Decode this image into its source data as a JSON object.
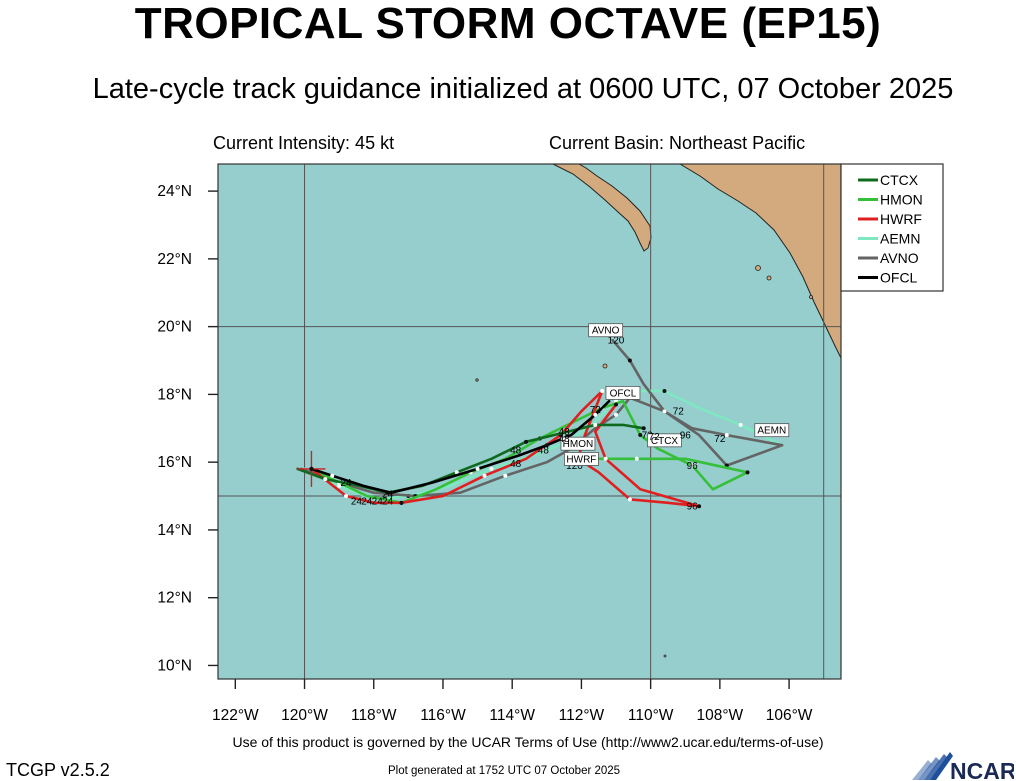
{
  "header": {
    "title": "TROPICAL STORM OCTAVE (EP15)",
    "subtitle": "Late-cycle track guidance initialized at 0600 UTC, 07 October 2025",
    "current_intensity": "Current Intensity: 45 kt",
    "current_basin": "Current Basin: Northeast Pacific"
  },
  "footer": {
    "terms": "Use of this product is governed by the UCAR Terms of Use (http://www2.ucar.edu/terms-of-use)",
    "version": "TCGP v2.5.2",
    "generated": "Plot generated at 1752 UTC   07 October 2025",
    "logo_text": "NCAR"
  },
  "colors": {
    "ocean": "#96cdcd",
    "land": "#d2aa7d",
    "grid": "#555555",
    "current_position_marker": "#d22020"
  },
  "map": {
    "type": "track-map",
    "lon_range_deg_W": [
      122.5,
      104.5
    ],
    "lat_range_deg_N": [
      9.6,
      24.8
    ],
    "lon_ticks_deg_W": [
      122,
      120,
      118,
      116,
      114,
      112,
      110,
      108,
      106
    ],
    "lat_ticks_deg_N": [
      10,
      12,
      14,
      16,
      18,
      20,
      22,
      24
    ],
    "lon_tick_labels": [
      "122°W",
      "120°W",
      "118°W",
      "116°W",
      "114°W",
      "112°W",
      "110°W",
      "108°W",
      "106°W"
    ],
    "lat_tick_labels": [
      "10°N",
      "12°N",
      "14°N",
      "16°N",
      "18°N",
      "20°N",
      "22°N",
      "24°N"
    ],
    "grid_lines": {
      "lon_W": [
        120,
        110,
        105
      ],
      "lat_N": [
        15,
        20
      ]
    },
    "current_position": {
      "lon": 119.8,
      "lat": 15.8
    }
  },
  "legend": {
    "placement": "top-right",
    "entries": [
      {
        "name": "CTCX",
        "color": "#0f6a1e"
      },
      {
        "name": "HMON",
        "color": "#36c03a"
      },
      {
        "name": "HWRF",
        "color": "#e02020"
      },
      {
        "name": "AEMN",
        "color": "#7ee8c0"
      },
      {
        "name": "AVNO",
        "color": "#646464"
      },
      {
        "name": "OFCL",
        "color": "#000000"
      }
    ]
  },
  "chart_data": {
    "type": "track-map",
    "x_unit": "degrees W longitude",
    "y_unit": "degrees N latitude",
    "series": [
      {
        "name": "AEMN",
        "color": "#7ee8c0",
        "points": [
          [
            120.0,
            15.8
          ],
          [
            119.0,
            15.3
          ],
          [
            118.0,
            14.9
          ],
          [
            117.0,
            15.0
          ],
          [
            115.8,
            15.3
          ],
          [
            114.6,
            15.8
          ],
          [
            113.4,
            16.2
          ],
          [
            112.4,
            16.6
          ],
          [
            111.7,
            17.1
          ],
          [
            111.0,
            17.8
          ],
          [
            110.4,
            18.1
          ],
          [
            109.6,
            18.1
          ],
          [
            108.6,
            17.6
          ],
          [
            107.4,
            17.1
          ],
          [
            106.2,
            16.5
          ]
        ],
        "labels": [
          {
            "text": "72",
            "lon": 109.2,
            "lat": 17.4
          }
        ],
        "box_label": {
          "text": "AEMN",
          "lon": 106.5,
          "lat": 16.9
        }
      },
      {
        "name": "AVNO",
        "color": "#646464",
        "points": [
          [
            120.1,
            15.8
          ],
          [
            119.0,
            15.4
          ],
          [
            118.0,
            15.1
          ],
          [
            116.8,
            15.0
          ],
          [
            115.5,
            15.1
          ],
          [
            114.2,
            15.6
          ],
          [
            113.0,
            16.0
          ],
          [
            112.3,
            16.4
          ],
          [
            111.6,
            17.0
          ],
          [
            111.0,
            17.4
          ],
          [
            110.6,
            17.9
          ],
          [
            109.6,
            17.5
          ],
          [
            108.8,
            17.0
          ],
          [
            107.8,
            16.8
          ],
          [
            106.2,
            16.5
          ],
          [
            107.8,
            15.9
          ],
          [
            108.6,
            16.8
          ],
          [
            109.6,
            17.5
          ],
          [
            110.2,
            18.3
          ],
          [
            110.6,
            19.0
          ],
          [
            111.1,
            19.6
          ]
        ],
        "labels": [
          {
            "text": "72",
            "lon": 108.0,
            "lat": 16.6
          },
          {
            "text": "120",
            "lon": 111.0,
            "lat": 19.5
          }
        ],
        "box_label": {
          "text": "AVNO",
          "lon": 111.3,
          "lat": 19.85
        }
      },
      {
        "name": "HMON",
        "color": "#36c03a",
        "points": [
          [
            119.8,
            15.8
          ],
          [
            119.0,
            15.4
          ],
          [
            118.2,
            15.0
          ],
          [
            117.2,
            14.8
          ],
          [
            116.2,
            15.2
          ],
          [
            115.2,
            15.7
          ],
          [
            114.2,
            16.1
          ],
          [
            113.2,
            16.7
          ],
          [
            112.2,
            17.2
          ],
          [
            111.4,
            17.6
          ],
          [
            110.8,
            17.8
          ],
          [
            110.3,
            16.8
          ],
          [
            109.8,
            16.4
          ],
          [
            108.8,
            15.9
          ],
          [
            108.2,
            15.2
          ],
          [
            107.2,
            15.7
          ],
          [
            109.0,
            16.1
          ],
          [
            110.4,
            16.1
          ],
          [
            111.8,
            16.1
          ]
        ],
        "labels": [
          {
            "text": "96",
            "lon": 108.8,
            "lat": 15.8
          }
        ],
        "box_label": {
          "text": "HMON",
          "lon": 112.1,
          "lat": 16.5
        }
      },
      {
        "name": "HWRF",
        "color": "#e02020",
        "points": [
          [
            119.8,
            15.8
          ],
          [
            118.8,
            15.0
          ],
          [
            118.0,
            14.8
          ],
          [
            117.2,
            14.8
          ],
          [
            116.0,
            15.0
          ],
          [
            114.8,
            15.6
          ],
          [
            113.6,
            16.1
          ],
          [
            112.6,
            16.8
          ],
          [
            112.0,
            17.5
          ],
          [
            111.4,
            18.1
          ],
          [
            111.9,
            16.8
          ],
          [
            112.1,
            16.1
          ],
          [
            111.5,
            15.7
          ],
          [
            110.6,
            14.9
          ],
          [
            109.5,
            14.8
          ],
          [
            108.6,
            14.7
          ],
          [
            110.3,
            15.2
          ],
          [
            111.3,
            16.1
          ],
          [
            111.6,
            16.9
          ],
          [
            111.0,
            17.7
          ]
        ],
        "labels": [
          {
            "text": "96",
            "lon": 108.8,
            "lat": 14.6
          },
          {
            "text": "120",
            "lon": 112.2,
            "lat": 15.8
          }
        ],
        "box_label": {
          "text": "HWRF",
          "lon": 112.0,
          "lat": 16.05
        }
      },
      {
        "name": "CTCX",
        "color": "#0f6a1e",
        "points": [
          [
            120.2,
            15.8
          ],
          [
            119.4,
            15.5
          ],
          [
            118.4,
            15.3
          ],
          [
            117.6,
            15.1
          ],
          [
            116.6,
            15.3
          ],
          [
            115.6,
            15.7
          ],
          [
            114.6,
            16.1
          ],
          [
            113.6,
            16.6
          ],
          [
            112.8,
            16.8
          ],
          [
            111.6,
            17.1
          ],
          [
            110.8,
            17.1
          ],
          [
            110.2,
            17.0
          ]
        ],
        "labels": [
          {
            "text": "72",
            "lon": 110.1,
            "lat": 16.7
          }
        ],
        "box_label": {
          "text": "CTCX",
          "lon": 109.6,
          "lat": 16.6
        }
      },
      {
        "name": "OFCL",
        "color": "#000000",
        "points": [
          [
            119.8,
            15.8
          ],
          [
            119.2,
            15.6
          ],
          [
            118.3,
            15.3
          ],
          [
            117.5,
            15.1
          ],
          [
            116.3,
            15.4
          ],
          [
            115.0,
            15.8
          ],
          [
            113.8,
            16.2
          ],
          [
            113.0,
            16.5
          ],
          [
            112.3,
            16.8
          ],
          [
            111.6,
            17.4
          ],
          [
            111.2,
            17.8
          ]
        ],
        "labels": [
          {
            "text": "72",
            "lon": 111.6,
            "lat": 17.45
          }
        ],
        "box_label": {
          "text": "OFCL",
          "lon": 110.8,
          "lat": 18.0
        }
      }
    ],
    "forecast_hour_labels": [
      {
        "text": "24",
        "lon": 118.8,
        "lat": 15.3
      },
      {
        "text": "24",
        "lon": 117.6,
        "lat": 14.95
      },
      {
        "text": "24",
        "lon": 118.5,
        "lat": 14.75
      },
      {
        "text": "24",
        "lon": 118.2,
        "lat": 14.75
      },
      {
        "text": "24",
        "lon": 117.9,
        "lat": 14.75
      },
      {
        "text": "24",
        "lon": 117.6,
        "lat": 14.75
      },
      {
        "text": "48",
        "lon": 113.9,
        "lat": 16.25
      },
      {
        "text": "48",
        "lon": 113.9,
        "lat": 15.85
      },
      {
        "text": "48",
        "lon": 113.1,
        "lat": 16.25
      },
      {
        "text": "48",
        "lon": 112.5,
        "lat": 16.8
      },
      {
        "text": "48",
        "lon": 112.5,
        "lat": 16.6
      },
      {
        "text": "72",
        "lon": 109.9,
        "lat": 16.65
      },
      {
        "text": "96",
        "lon": 109.0,
        "lat": 16.7
      }
    ]
  }
}
